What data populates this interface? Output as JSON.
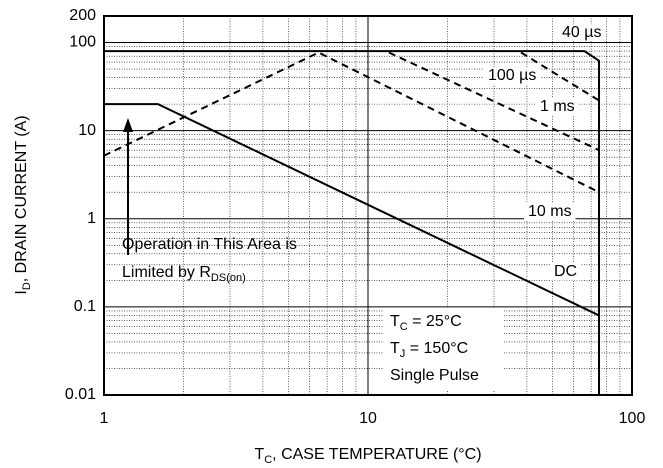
{
  "chart_data": {
    "type": "line",
    "log_x": true,
    "log_y": true,
    "grid": true,
    "xlim": [
      1,
      100
    ],
    "xticks": [
      1,
      10,
      100
    ],
    "ylim": [
      0.01,
      200
    ],
    "yticks": [
      0.01,
      0.1,
      1,
      10,
      100,
      200
    ],
    "x_label": {
      "main": "T",
      "sub": "C",
      "rest": ", CASE TEMPERATURE (°C)"
    },
    "y_label": {
      "main": "I",
      "sub": "D",
      "rest": ", DRAIN CURRENT (A)"
    },
    "series": [
      {
        "name": "40 µs",
        "color": "#000",
        "dash": false,
        "x": [
          1,
          66,
          75,
          75
        ],
        "values": [
          80,
          80,
          62,
          0.01
        ]
      },
      {
        "name": "100 µs",
        "color": "#000",
        "dash": true,
        "x": [
          38,
          75
        ],
        "values": [
          77,
          22
        ]
      },
      {
        "name": "1 ms",
        "color": "#000",
        "dash": true,
        "x": [
          12,
          75
        ],
        "values": [
          77,
          6
        ]
      },
      {
        "name": "10 ms",
        "color": "#000",
        "dash": true,
        "x": [
          1,
          6.5,
          75
        ],
        "values": [
          5.2,
          77,
          2
        ]
      },
      {
        "name": "DC",
        "color": "#000",
        "dash": false,
        "x": [
          1,
          1.6,
          75
        ],
        "values": [
          20,
          20,
          0.08
        ]
      }
    ],
    "annotations": [
      {
        "text": "Operation in This Area is"
      },
      {
        "text": "Limited by R",
        "sub": "DS(on)"
      },
      {
        "text": "T",
        "sub": "C",
        "rest": " = 25°C"
      },
      {
        "text": "T",
        "sub": "J",
        "rest": " = 150°C"
      },
      {
        "text": "Single Pulse"
      }
    ]
  }
}
